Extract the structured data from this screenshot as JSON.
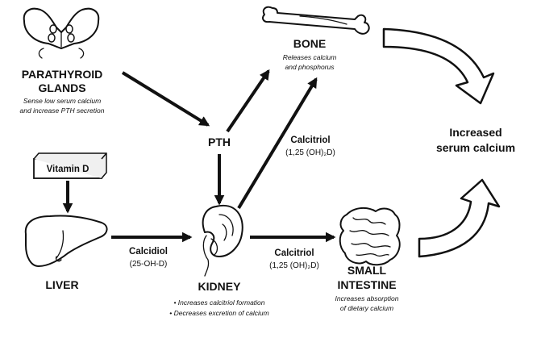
{
  "parathyroid": {
    "title_line1": "PARATHYROID",
    "title_line2": "GLANDS",
    "note_line1": "Sense low serum calcium",
    "note_line2": "and  increase PTH secretion"
  },
  "pth": {
    "label": "PTH"
  },
  "bone": {
    "title": "BONE",
    "note_line1": "Releases calcium",
    "note_line2": "and phosphorus"
  },
  "vitamin_d": {
    "label": "Vitamin D"
  },
  "liver": {
    "title": "LIVER"
  },
  "kidney": {
    "title": "KIDNEY",
    "bullet1": "• Increases calcitriol formation",
    "bullet2": "• Decreases excretion of calcium"
  },
  "small_intestine": {
    "title_line1": "SMALL",
    "title_line2": "INTESTINE",
    "note_line1": "Increases absorption",
    "note_line2": "of dietary calcium"
  },
  "calcidiol": {
    "name": "Calcidiol",
    "formula": "(25-OH-D)"
  },
  "calcitriol_upper": {
    "name": "Calcitriol",
    "formula": "(1,25 (OH)₂D)"
  },
  "calcitriol_lower": {
    "name": "Calcitriol",
    "formula": "(1,25 (OH)₂D)"
  },
  "result": {
    "line1": "Increased",
    "line2": "serum calcium"
  }
}
